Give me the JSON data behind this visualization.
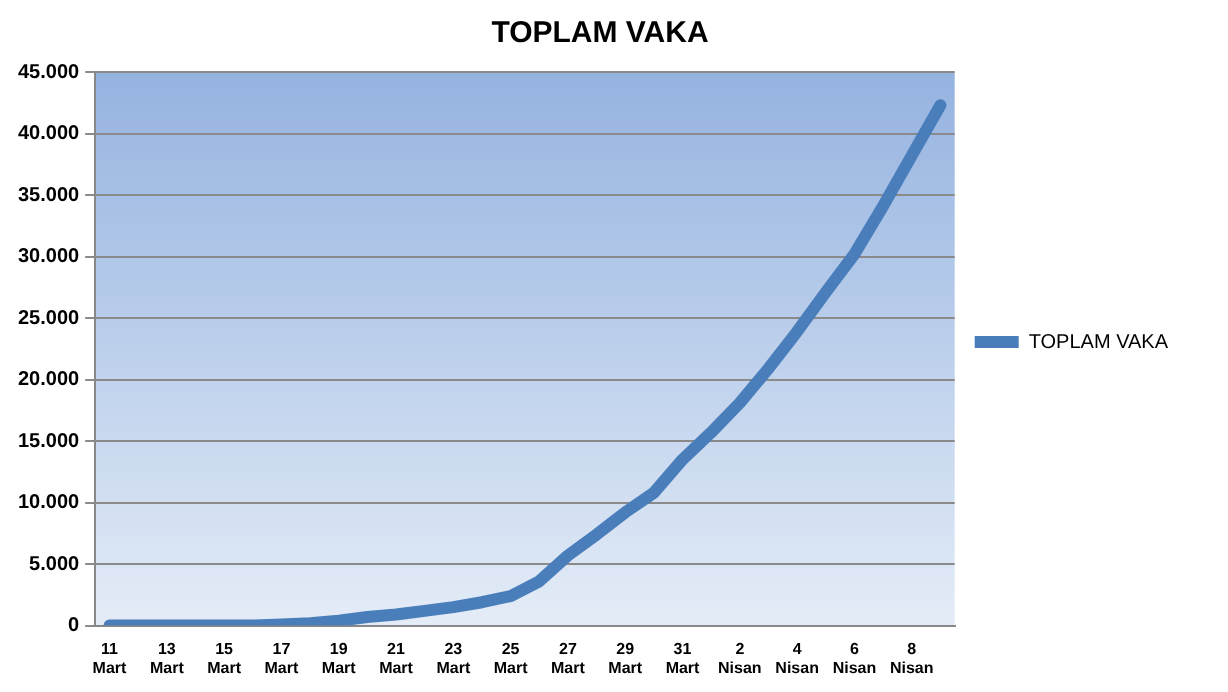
{
  "chart_data": {
    "type": "line",
    "title": "TOPLAM VAKA",
    "categories": [
      "11 Mart",
      null,
      "13 Mart",
      null,
      "15 Mart",
      null,
      "17 Mart",
      null,
      "19 Mart",
      null,
      "21 Mart",
      null,
      "23 Mart",
      null,
      "25 Mart",
      null,
      "27 Mart",
      null,
      "29 Mart",
      null,
      "31 Mart",
      null,
      "2 Nisan",
      null,
      "4 Nisan",
      null,
      "6 Nisan",
      null,
      "8 Nisan",
      null
    ],
    "series": [
      {
        "name": "TOPLAM VAKA",
        "color": "#4a7ebb",
        "values": [
          0,
          0,
          0,
          0,
          0,
          0,
          100,
          200,
          400,
          700,
          900,
          1200,
          1500,
          1900,
          2400,
          3600,
          5700,
          7400,
          9200,
          10800,
          13500,
          15700,
          18100,
          20900,
          23900,
          27100,
          30200,
          34100,
          38200,
          42300
        ]
      }
    ],
    "ylim": [
      0,
      45000
    ],
    "yticks": [
      0,
      {
        "value": 5000,
        "label": "5.000"
      },
      {
        "value": 10000,
        "label": "10.000"
      },
      {
        "value": 15000,
        "label": "15.000"
      },
      {
        "value": 20000,
        "label": "20.000"
      },
      {
        "value": 25000,
        "label": "25.000"
      },
      {
        "value": 30000,
        "label": "30.000"
      },
      {
        "value": 35000,
        "label": "35.000"
      },
      {
        "value": 40000,
        "label": "40.000"
      },
      {
        "value": 45000,
        "label": "45.000"
      }
    ],
    "grid": "y",
    "legend": "right",
    "marker": "none",
    "line_style": "solid"
  }
}
